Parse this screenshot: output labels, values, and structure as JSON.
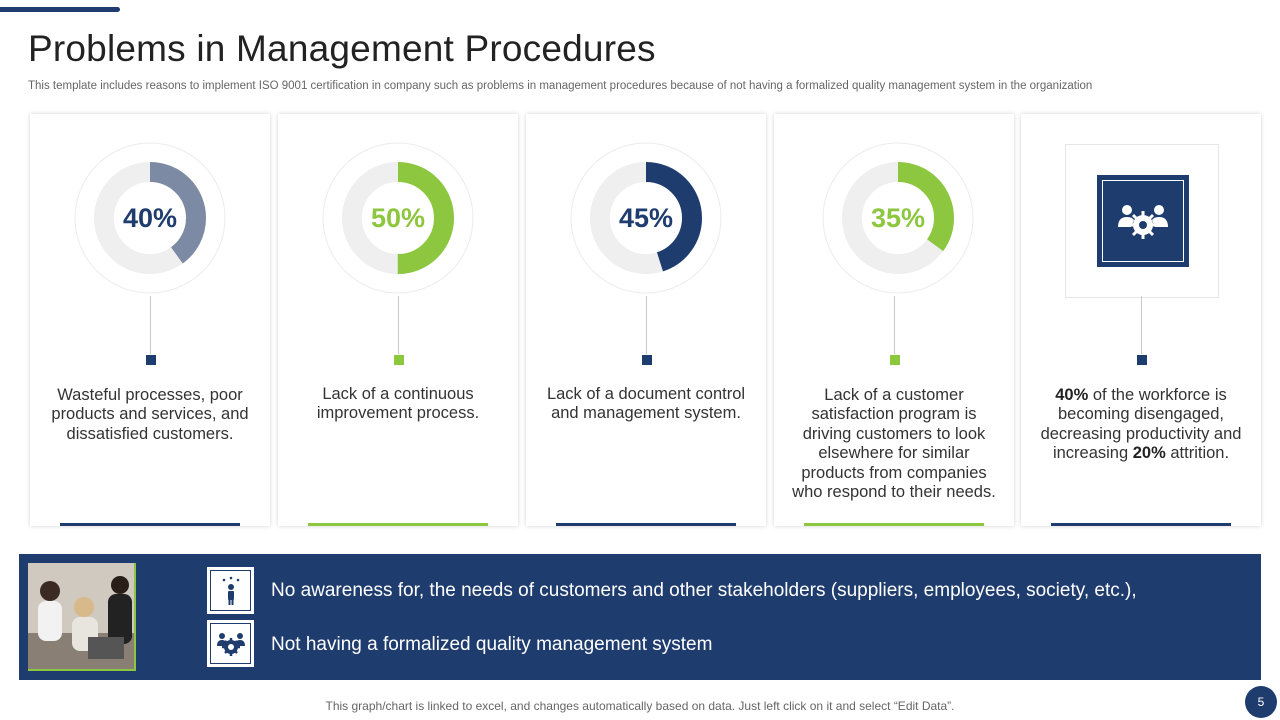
{
  "header": {
    "title": "Problems in Management Procedures",
    "subtitle": "This template includes reasons to implement ISO 9001 certification in company such as problems in management procedures because of not having a formalized quality management system in the organization"
  },
  "colors": {
    "navy": "#1f3c6e",
    "green": "#8dc63f",
    "slate": "#7d8aa3",
    "track": "#efefef"
  },
  "cards": [
    {
      "percent_label": "40%",
      "percent": 40,
      "color": "#7d8aa3",
      "text_color": "#1f3c6e",
      "dot_color": "#1f3c6e",
      "bar_color": "#1f3c6e",
      "text": "Wasteful processes, poor products and services, and dissatisfied customers."
    },
    {
      "percent_label": "50%",
      "percent": 50,
      "color": "#8dc63f",
      "text_color": "#8dc63f",
      "dot_color": "#8dc63f",
      "bar_color": "#8dc63f",
      "text": "Lack of a continuous improvement process."
    },
    {
      "percent_label": "45%",
      "percent": 45,
      "color": "#1f3c6e",
      "text_color": "#1f3c6e",
      "dot_color": "#1f3c6e",
      "bar_color": "#1f3c6e",
      "text": "Lack of a document control and management system."
    },
    {
      "percent_label": "35%",
      "percent": 35,
      "color": "#8dc63f",
      "text_color": "#8dc63f",
      "dot_color": "#8dc63f",
      "bar_color": "#8dc63f",
      "text": "Lack of a customer satisfaction program is driving customers to look elsewhere for similar products from companies who respond to their needs."
    }
  ],
  "card5": {
    "icon": "team-gear-icon",
    "bold1": "40%",
    "text1": " of the workforce is becoming disengaged, decreasing productivity and increasing ",
    "bold2": "20%",
    "text2": " attrition."
  },
  "banner": {
    "photo": "team-meeting-photo",
    "rows": [
      {
        "icon": "person-idea-icon",
        "text": "No awareness for, the needs of customers and other stakeholders (suppliers, employees, society, etc.),"
      },
      {
        "icon": "gear-people-icon",
        "text": "Not having a formalized quality management system"
      }
    ]
  },
  "footer": {
    "note": "This graph/chart is linked to excel, and changes automatically based on data. Just left click on it and select “Edit Data”.",
    "page_number": "5"
  }
}
